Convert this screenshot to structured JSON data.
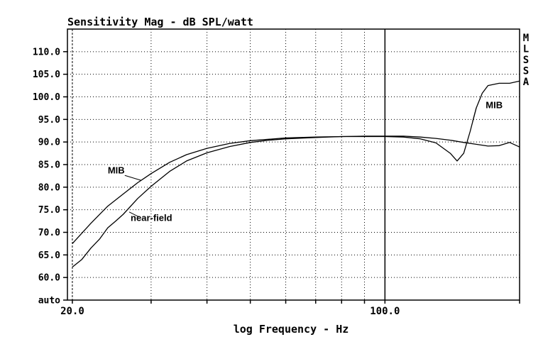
{
  "chart_data": {
    "type": "line",
    "title": "Sensitivity Mag - dB SPL/watt",
    "side_label": "MLSSA",
    "xlabel": "log Frequency - Hz",
    "ylabel": "",
    "xscale": "log",
    "xlim": [
      19.5,
      200
    ],
    "ylim": [
      55,
      115
    ],
    "x_tick_labels": [
      "20.0",
      "100.0"
    ],
    "x_tick_values": [
      20,
      100
    ],
    "x_minor_ticks": [
      30,
      40,
      50,
      60,
      70,
      80,
      90,
      200
    ],
    "y_tick_labels": [
      "auto",
      "60.0",
      "65.0",
      "70.0",
      "75.0",
      "80.0",
      "85.0",
      "90.0",
      "95.0",
      "100.0",
      "105.0",
      "110.0"
    ],
    "y_tick_values": [
      55,
      60,
      65,
      70,
      75,
      80,
      85,
      90,
      95,
      100,
      105,
      110
    ],
    "grid": true,
    "grid_style": "dotted",
    "colors": {
      "line": "#000000",
      "background": "#ffffff"
    },
    "annotations": [
      {
        "text": "MIB",
        "x": 24,
        "y": 83
      },
      {
        "text": "near-field",
        "x": 27,
        "y": 72.5
      },
      {
        "text": "MIB",
        "x": 168,
        "y": 97.5
      }
    ],
    "series": [
      {
        "name": "MIB",
        "x": [
          20,
          22,
          24,
          26,
          28,
          30,
          33,
          36,
          40,
          45,
          50,
          55,
          60,
          70,
          80,
          90,
          100,
          110,
          120,
          130,
          140,
          145,
          150,
          155,
          160,
          165,
          170,
          180,
          190,
          200
        ],
        "y": [
          67.5,
          72,
          75.8,
          78.5,
          81,
          83,
          85.5,
          87.2,
          88.6,
          89.7,
          90.3,
          90.6,
          90.9,
          91.1,
          91.2,
          91.2,
          91.2,
          91.1,
          90.7,
          89.8,
          87.5,
          85.8,
          87.5,
          92.3,
          97.5,
          100.8,
          102.5,
          103,
          103,
          103.5
        ]
      },
      {
        "name": "near-field",
        "x": [
          20,
          21,
          22,
          23,
          24,
          25,
          26,
          28,
          30,
          33,
          36,
          40,
          45,
          50,
          55,
          60,
          70,
          80,
          90,
          100,
          110,
          120,
          130,
          140,
          150,
          160,
          170,
          180,
          190,
          200
        ],
        "y": [
          62.3,
          64,
          66.5,
          68.5,
          71,
          72.5,
          74,
          77.5,
          80.2,
          83.5,
          85.8,
          87.6,
          89,
          89.9,
          90.4,
          90.7,
          91,
          91.2,
          91.3,
          91.3,
          91.3,
          91.1,
          90.8,
          90.4,
          89.9,
          89.5,
          89.1,
          89.2,
          89.9,
          88.9
        ]
      }
    ]
  }
}
